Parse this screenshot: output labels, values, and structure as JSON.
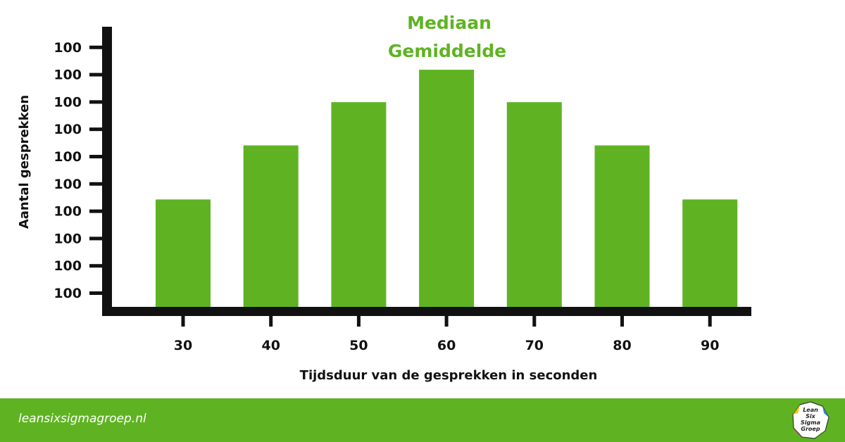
{
  "colors": {
    "bar": "#5fb323",
    "axis": "#111111",
    "footer": "#5fb323",
    "annotation": "#5fb323",
    "text": "#111111"
  },
  "chart_data": {
    "type": "bar",
    "xlabel": "Tijdsduur van de gesprekken in seconden",
    "ylabel": "Aantal gesprekken",
    "categories": [
      "30",
      "40",
      "50",
      "60",
      "70",
      "80",
      "90"
    ],
    "values": [
      4,
      6,
      7.6,
      8.8,
      7.6,
      6,
      4
    ],
    "y_tick_labels": [
      "100",
      "100",
      "100",
      "100",
      "100",
      "100",
      "100",
      "100",
      "100",
      "100"
    ],
    "ylim": [
      0,
      10
    ],
    "grid": false,
    "annotations": [
      "Mediaan",
      "Gemiddelde"
    ]
  },
  "footer": {
    "url": "leansixsigmagroep.nl",
    "logo_text": [
      "Lean",
      "Six",
      "Sigma",
      "Groep"
    ]
  }
}
